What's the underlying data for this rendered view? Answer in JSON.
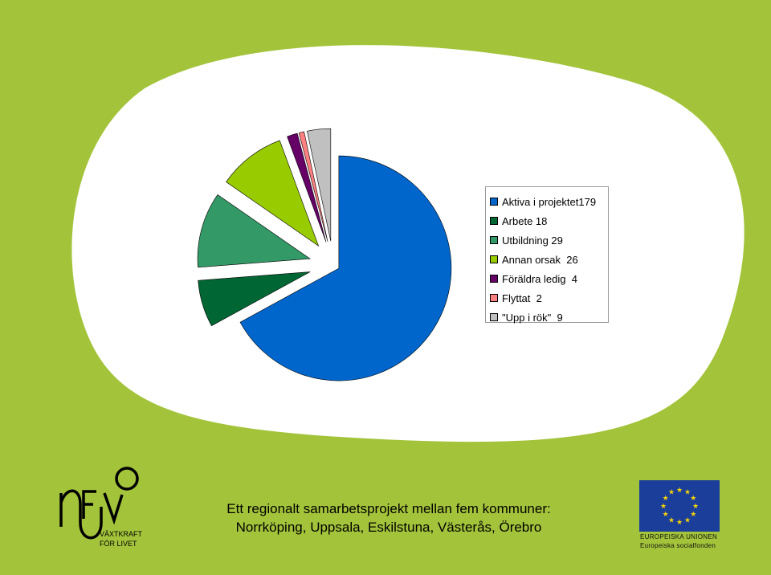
{
  "chart_data": {
    "type": "pie",
    "title": "",
    "legend_position": "right",
    "labels": [
      "Aktiva i projektet",
      "Arbete",
      "Utbildning",
      "Annan orsak",
      "Föräldra ledig",
      "Flyttat",
      "\"Upp i rök\""
    ],
    "values": [
      179,
      18,
      29,
      26,
      4,
      2,
      9
    ],
    "colors": [
      "#0066cc",
      "#006633",
      "#339966",
      "#99cc00",
      "#660066",
      "#ff8080",
      "#c0c0c0"
    ],
    "exploded": true,
    "legend": [
      {
        "label": "Aktiva i projektet179",
        "color": "#0066cc"
      },
      {
        "label": "Arbete 18",
        "color": "#006633"
      },
      {
        "label": "Utbildning 29",
        "color": "#339966"
      },
      {
        "label": "Annan orsak  26",
        "color": "#99cc00"
      },
      {
        "label": "Föräldra ledig  4",
        "color": "#660066"
      },
      {
        "label": "Flyttat  2",
        "color": "#ff8080"
      },
      {
        "label": "\"Upp i rök\"  9",
        "color": "#c0c0c0"
      }
    ]
  },
  "footer": {
    "line1": "Ett regionalt samarbetsprojekt mellan fem kommuner:",
    "line2": "Norrköping, Uppsala, Eskilstuna, Västerås, Örebro"
  },
  "logos": {
    "nevo": {
      "mark": "NEVO",
      "line1": "VÄXTKRAFT",
      "line2": "FÖR LIVET"
    },
    "eu": {
      "line1": "EUROPEISKA UNIONEN",
      "line2": "Europeiska socialfonden"
    }
  },
  "theme": {
    "background": "#a3c43a",
    "panel": "#ffffff"
  }
}
